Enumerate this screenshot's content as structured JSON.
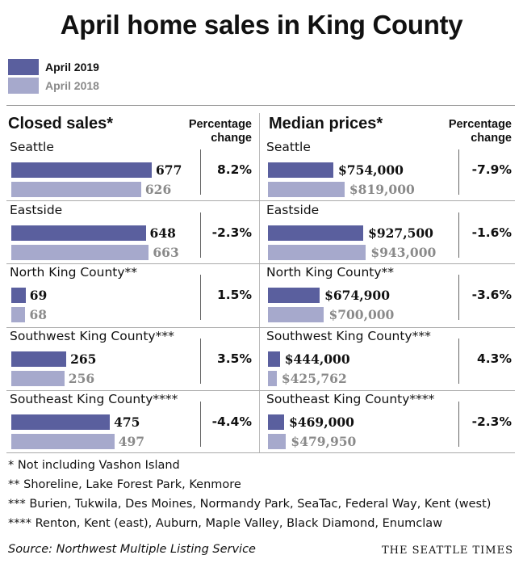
{
  "chart_data": {
    "type": "bar",
    "title": "April home sales in King County",
    "legend": [
      "April 2019",
      "April 2018"
    ],
    "colors": {
      "current": "#5a5f9e",
      "previous": "#a6a9cc"
    },
    "categories": [
      "Seattle",
      "Eastside",
      "North King County**",
      "Southwest King County***",
      "Southeast King County****"
    ],
    "closed_sales": {
      "header": "Closed sales*",
      "pct_header_1": "Percentage",
      "pct_header_2": "change",
      "series": [
        {
          "name": "April 2019",
          "values": [
            677,
            648,
            69,
            265,
            475
          ]
        },
        {
          "name": "April 2018",
          "values": [
            626,
            663,
            68,
            256,
            497
          ]
        }
      ],
      "labels_2019": [
        "677",
        "648",
        "69",
        "265",
        "475"
      ],
      "labels_2018": [
        "626",
        "663",
        "68",
        "256",
        "497"
      ],
      "pct_change": [
        "8.2%",
        "-2.3%",
        "1.5%",
        "3.5%",
        "-4.4%"
      ]
    },
    "median_prices": {
      "header": "Median prices*",
      "pct_header_1": "Percentage",
      "pct_header_2": "change",
      "series": [
        {
          "name": "April 2019",
          "values": [
            754000,
            927500,
            674900,
            444000,
            469000
          ]
        },
        {
          "name": "April 2018",
          "values": [
            819000,
            943000,
            700000,
            425762,
            479950
          ]
        }
      ],
      "labels_2019": [
        "$754,000",
        "$927,500",
        "$674,900",
        "$444,000",
        "$469,000"
      ],
      "labels_2018": [
        "$819,000",
        "$943,000",
        "$700,000",
        "$425,762",
        "$479,950"
      ],
      "pct_change": [
        "-7.9%",
        "-1.6%",
        "-3.6%",
        "4.3%",
        "-2.3%"
      ]
    }
  },
  "footnotes": [
    "* Not including Vashon Island",
    "** Shoreline, Lake Forest Park, Kenmore",
    "*** Burien, Tukwila, Des Moines, Normandy Park, SeaTac, Federal Way, Kent (west)",
    "**** Renton, Kent (east), Auburn, Maple Valley, Black Diamond, Enumclaw"
  ],
  "source": "Source: Northwest Multiple Listing Service",
  "brand": "THE SEATTLE TIMES"
}
